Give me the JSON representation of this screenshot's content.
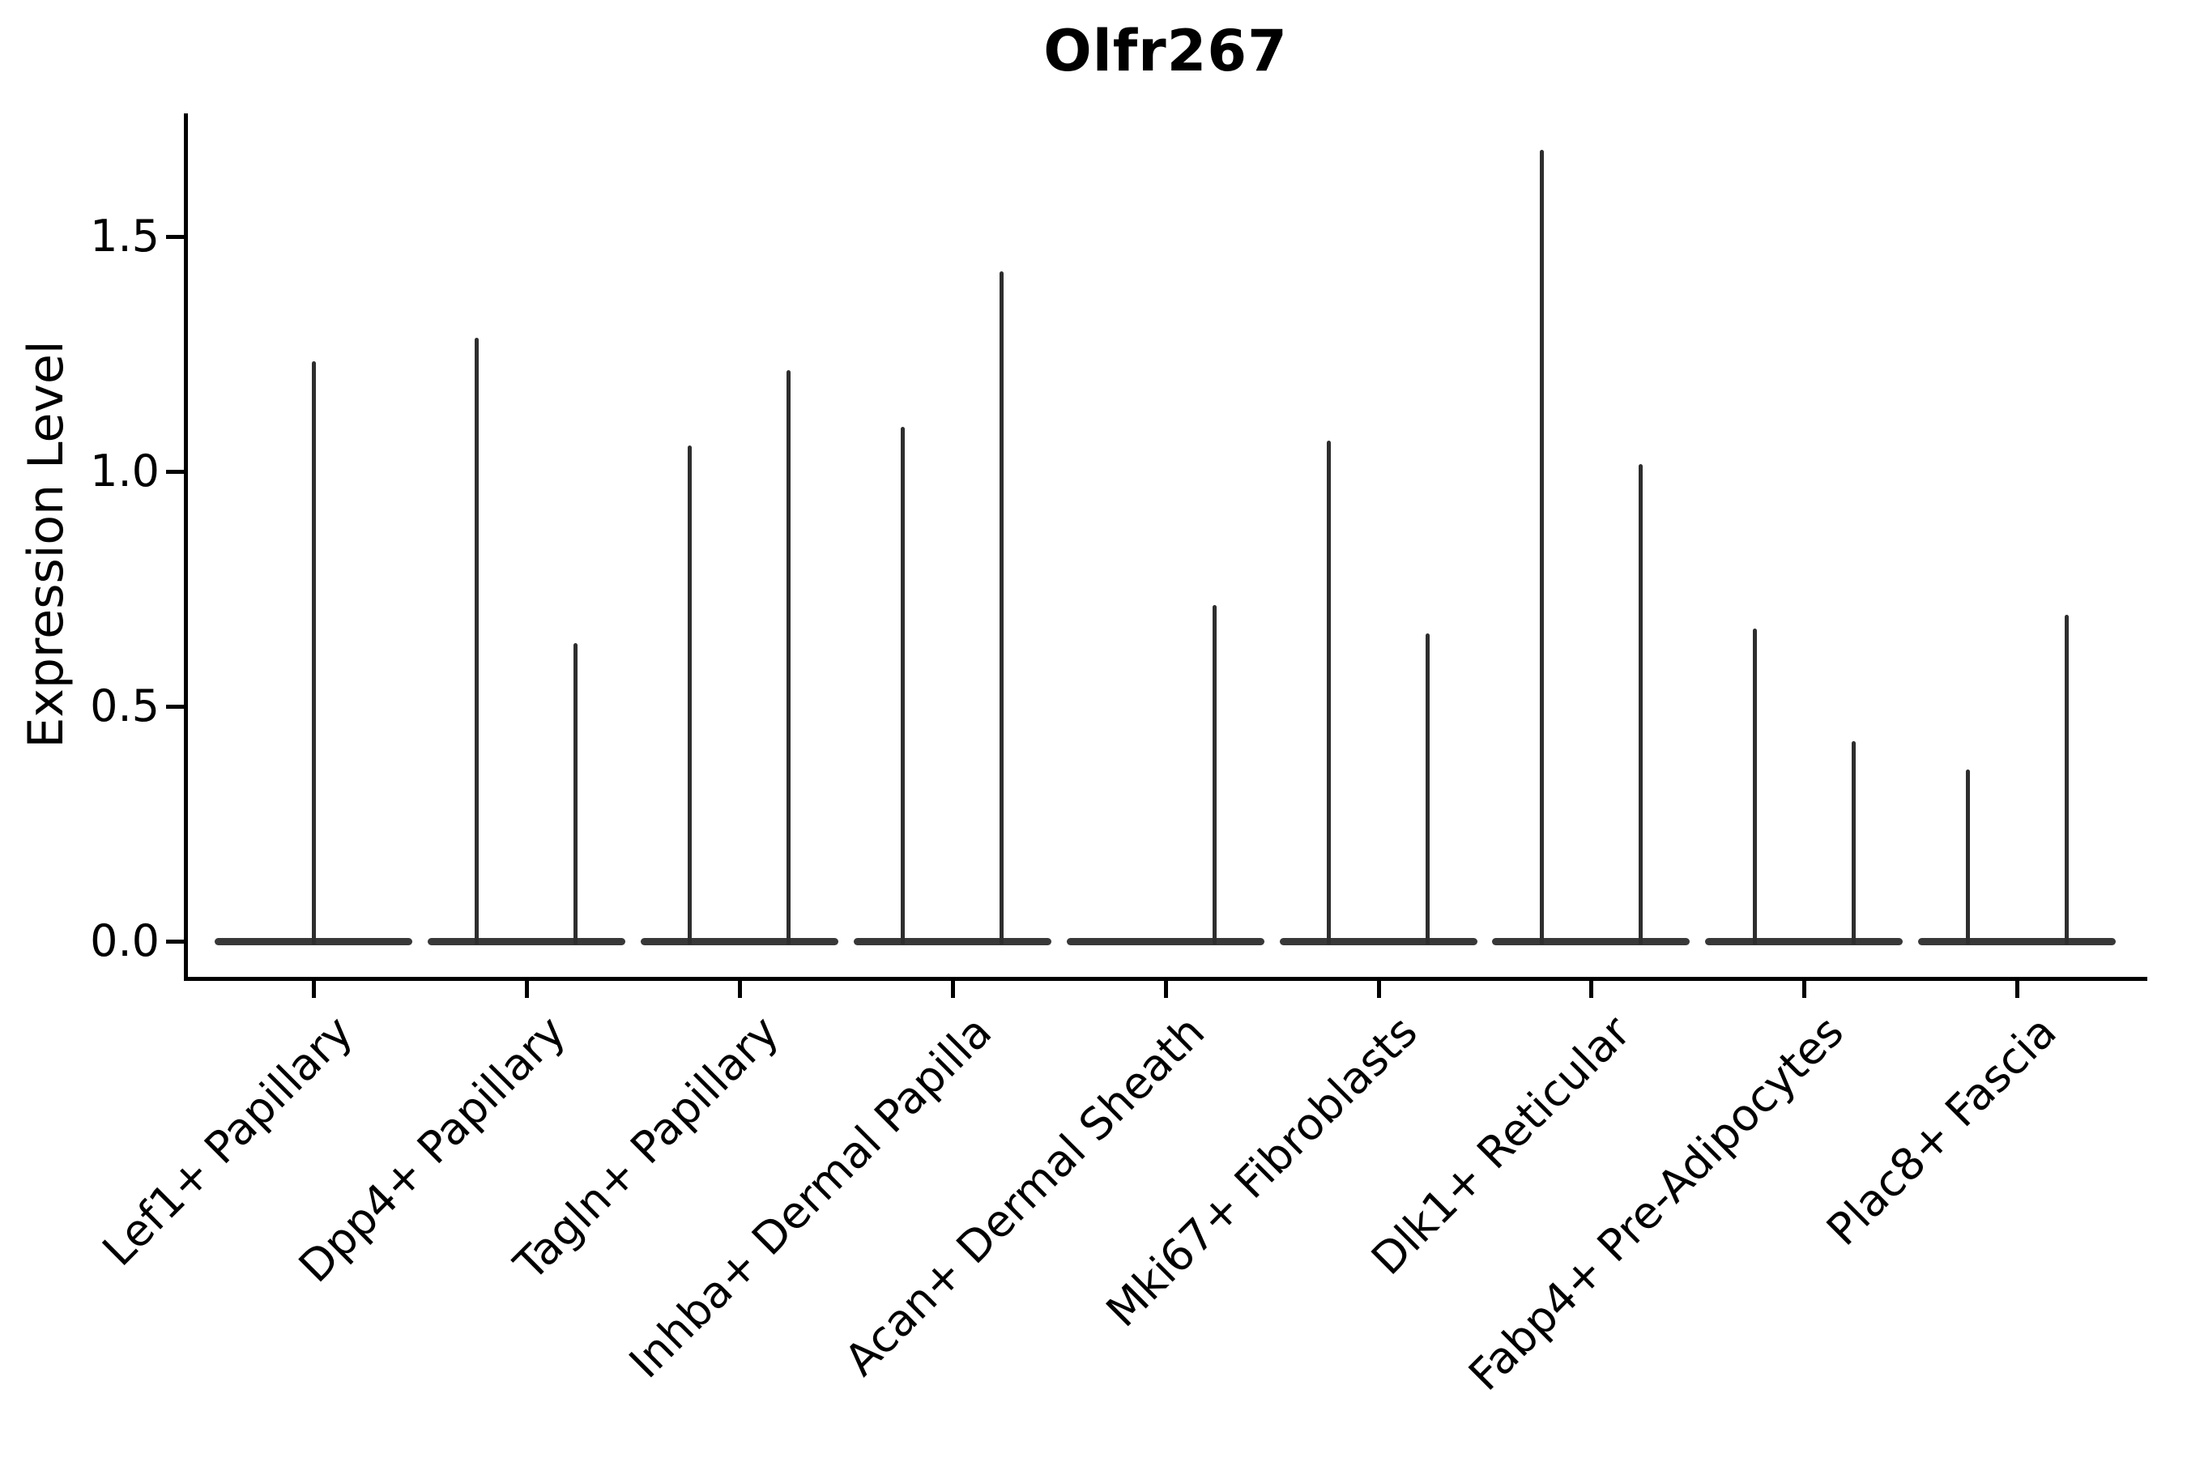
{
  "page": {
    "title": "Olfr267",
    "ylabel": "Expression Level"
  },
  "chart_data": {
    "type": "violin",
    "title": "Olfr267",
    "xlabel": "",
    "ylabel": "Expression Level",
    "ytick_labels": [
      "0.0",
      "0.5",
      "1.0",
      "1.5"
    ],
    "ytick_values": [
      0.0,
      0.5,
      1.0,
      1.5
    ],
    "ylim": [
      -0.08,
      1.76
    ],
    "grid": false,
    "legend": null,
    "baseline_value": 0.0,
    "distribution_note": "Each violin is a flat bar at expression 0 with a thin needle rising to its maximum expression value",
    "categories": [
      {
        "label": "Lef1+ Papillary",
        "violins": [
          {
            "position": "center",
            "max_expression": 1.23
          }
        ]
      },
      {
        "label": "Dpp4+ Papillary",
        "violins": [
          {
            "position": "left",
            "max_expression": 1.28
          },
          {
            "position": "right",
            "max_expression": 0.63
          }
        ]
      },
      {
        "label": "Tagln+ Papillary",
        "violins": [
          {
            "position": "left",
            "max_expression": 1.05
          },
          {
            "position": "right",
            "max_expression": 1.21
          }
        ]
      },
      {
        "label": "Inhba+ Dermal Papilla",
        "violins": [
          {
            "position": "left",
            "max_expression": 1.09
          },
          {
            "position": "right",
            "max_expression": 1.42
          }
        ]
      },
      {
        "label": "Acan+ Dermal Sheath",
        "violins": [
          {
            "position": "left",
            "max_expression": 0.0
          },
          {
            "position": "right",
            "max_expression": 0.71
          }
        ]
      },
      {
        "label": "Mki67+ Fibroblasts",
        "violins": [
          {
            "position": "left",
            "max_expression": 1.06
          },
          {
            "position": "right",
            "max_expression": 0.65
          }
        ]
      },
      {
        "label": "Dlk1+ Reticular",
        "violins": [
          {
            "position": "left",
            "max_expression": 1.68
          },
          {
            "position": "right",
            "max_expression": 1.01
          }
        ]
      },
      {
        "label": "Fabp4+ Pre-Adipocytes",
        "violins": [
          {
            "position": "left",
            "max_expression": 0.66
          },
          {
            "position": "right",
            "max_expression": 0.42
          }
        ]
      },
      {
        "label": "Plac8+ Fascia",
        "violins": [
          {
            "position": "left",
            "max_expression": 0.36
          },
          {
            "position": "right",
            "max_expression": 0.69
          }
        ]
      }
    ]
  }
}
